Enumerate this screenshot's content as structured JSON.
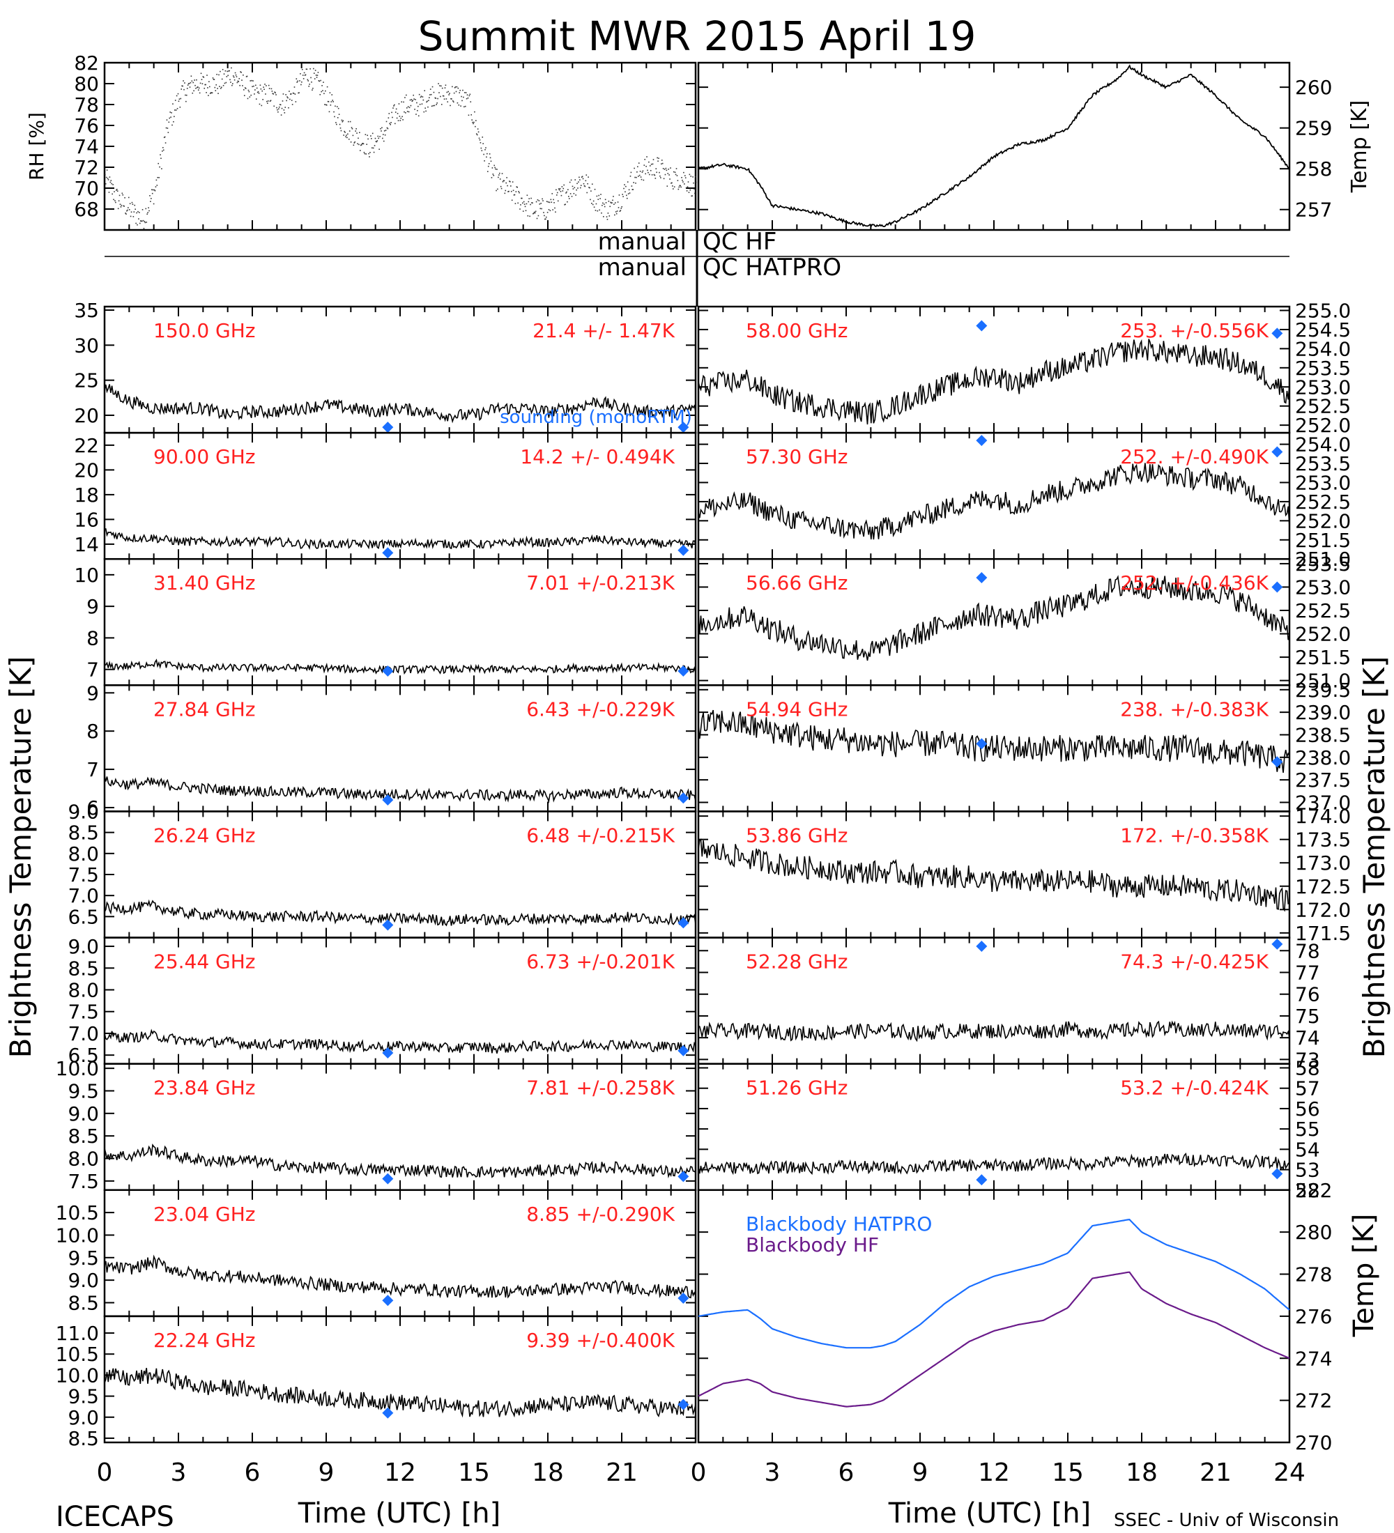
{
  "header": {
    "title": "Summit MWR 2015 April 19",
    "footer_left": "ICECAPS",
    "footer_right": "SSEC - Univ of Wisconsin"
  },
  "colors": {
    "trace": "#000000",
    "label": "#ff2020",
    "marker": "#1a6fff",
    "hatpro": "#1a6fff",
    "hf": "#6a1a8a",
    "sonde_label": "#1a6fff"
  },
  "qc": {
    "manual_left": "manual",
    "qc_hf": "QC HF",
    "qc_hatpro": "QC HATPRO"
  },
  "axes_labels": {
    "rh_ylabel": "RH [%]",
    "temp_ylabel": "Temp [K]",
    "tb_left": "Brightness Temperature [K]",
    "tb_right": "Brightness Temperature [K]",
    "bb_ylabel": "Temp [K]",
    "xlabel_left": "Time (UTC) [h]",
    "xlabel_right": "Time (UTC) [h]",
    "x_ticks": [
      "0",
      "3",
      "6",
      "9",
      "12",
      "15",
      "18",
      "21",
      "24"
    ],
    "sonde_legend": "sounding (monoRTM)"
  },
  "chart_data": [
    {
      "id": "rh",
      "type": "scatter",
      "ylabel": "RH [%]",
      "ylim": [
        66,
        82
      ],
      "yticks": [
        "68",
        "70",
        "72",
        "74",
        "76",
        "78",
        "80",
        "82"
      ],
      "series": [
        {
          "x": [
            0,
            0.5,
            1,
            1.5,
            2,
            2.5,
            3,
            3.5,
            4,
            4.5,
            5,
            5.5,
            6,
            6.5,
            7,
            7.5,
            8,
            8.5,
            9,
            9.5,
            10,
            10.5,
            11,
            11.5,
            12,
            12.5,
            13,
            13.5,
            14,
            14.5,
            15,
            15.5,
            16,
            16.5,
            17,
            17.5,
            18,
            18.5,
            19,
            19.5,
            20,
            20.5,
            21,
            21.5,
            22,
            22.5,
            23,
            23.5
          ],
          "y": [
            71,
            69,
            68,
            67,
            70,
            76,
            79,
            80,
            80,
            80,
            81,
            80,
            79,
            79,
            78,
            79,
            81,
            80,
            78,
            76,
            75,
            74,
            75,
            77,
            78,
            78,
            79,
            79,
            79,
            78,
            74,
            71,
            70,
            69,
            68,
            68,
            69,
            70,
            71,
            69,
            68,
            69,
            71,
            72,
            72,
            71,
            71,
            70
          ]
        }
      ]
    },
    {
      "id": "temp",
      "type": "line",
      "ylabel": "Temp [K]",
      "ylim": [
        256.5,
        260.6
      ],
      "yticks": [
        "257",
        "258",
        "259",
        "260"
      ],
      "series": [
        {
          "x": [
            0,
            1,
            2,
            2.5,
            3,
            4,
            5,
            6,
            7,
            7.5,
            8,
            9,
            10,
            11,
            12,
            13,
            14,
            15,
            15.5,
            16,
            17,
            17.5,
            18,
            19,
            20,
            21,
            22,
            23,
            24
          ],
          "y": [
            258,
            258.1,
            258,
            257.6,
            257.1,
            257,
            256.9,
            256.7,
            256.6,
            256.6,
            256.7,
            257,
            257.4,
            257.8,
            258.3,
            258.6,
            258.7,
            259,
            259.4,
            259.8,
            260.2,
            260.5,
            260.3,
            260,
            260.3,
            259.8,
            259.2,
            258.8,
            258
          ]
        }
      ]
    }
  ],
  "tb_left": [
    {
      "freq": "150.0 GHz",
      "stat": "21.4 +/-  1.47K",
      "ylim": [
        17.5,
        35.5
      ],
      "yticks": [
        "20",
        "25",
        "30",
        "35"
      ],
      "base": [
        24,
        22,
        21,
        21,
        21,
        20,
        20.5,
        20.5,
        21,
        21.5,
        21,
        20.5,
        21,
        20.5,
        20,
        20,
        21,
        21,
        20.5,
        21,
        22,
        21,
        20.5,
        20.5,
        21
      ],
      "noise": 0.9,
      "sondes": [
        [
          11.5,
          17.5
        ],
        [
          23.5,
          18
        ]
      ]
    },
    {
      "freq": "90.00 GHz",
      "stat": "14.2 +/- 0.494K",
      "ylim": [
        12.8,
        23
      ],
      "yticks": [
        "14",
        "16",
        "18",
        "20",
        "22"
      ],
      "base": [
        15,
        14.5,
        14.5,
        14.2,
        14.2,
        14.2,
        14.2,
        14.2,
        14,
        14,
        14,
        14,
        14,
        14.1,
        14,
        14,
        14,
        14.2,
        14.1,
        14.2,
        14.4,
        14.2,
        14.1,
        14,
        14
      ],
      "noise": 0.35,
      "sondes": [
        [
          11.5,
          13.3
        ],
        [
          23.5,
          13.5
        ]
      ]
    },
    {
      "freq": "31.40 GHz",
      "stat": "7.01 +/-0.213K",
      "ylim": [
        6.5,
        10.5
      ],
      "yticks": [
        "7",
        "8",
        "9",
        "10"
      ],
      "base": [
        7.1,
        7.1,
        7.2,
        7.1,
        7.05,
        7.05,
        7.05,
        7.05,
        7.05,
        7.05,
        7,
        7,
        7,
        7,
        7,
        7,
        7,
        7,
        7,
        7.05,
        7.05,
        7.05,
        7.05,
        7.05,
        7
      ],
      "noise": 0.12,
      "sondes": [
        [
          11.5,
          6.95
        ],
        [
          23.5,
          6.95
        ]
      ]
    },
    {
      "freq": "27.84 GHz",
      "stat": "6.43 +/-0.229K",
      "ylim": [
        5.9,
        9.2
      ],
      "yticks": [
        "6",
        "7",
        "8",
        "9"
      ],
      "base": [
        6.7,
        6.6,
        6.65,
        6.55,
        6.5,
        6.45,
        6.45,
        6.4,
        6.4,
        6.4,
        6.35,
        6.35,
        6.35,
        6.35,
        6.3,
        6.35,
        6.3,
        6.35,
        6.3,
        6.35,
        6.35,
        6.4,
        6.35,
        6.35,
        6.3
      ],
      "noise": 0.14,
      "sondes": [
        [
          11.5,
          6.2
        ],
        [
          23.5,
          6.25
        ]
      ]
    },
    {
      "freq": "26.24 GHz",
      "stat": "6.48 +/-0.215K",
      "ylim": [
        6.0,
        9.0
      ],
      "yticks": [
        "6.5",
        "7.0",
        "7.5",
        "8.0",
        "8.5",
        "9.0"
      ],
      "base": [
        6.7,
        6.7,
        6.75,
        6.6,
        6.55,
        6.55,
        6.5,
        6.5,
        6.5,
        6.5,
        6.45,
        6.45,
        6.45,
        6.45,
        6.4,
        6.45,
        6.4,
        6.45,
        6.45,
        6.45,
        6.45,
        6.5,
        6.45,
        6.45,
        6.4
      ],
      "noise": 0.13,
      "sondes": [
        [
          11.5,
          6.3
        ],
        [
          23.5,
          6.35
        ]
      ]
    },
    {
      "freq": "25.44 GHz",
      "stat": "6.73 +/-0.201K",
      "ylim": [
        6.3,
        9.2
      ],
      "yticks": [
        "6.5",
        "7.0",
        "7.5",
        "8.0",
        "8.5",
        "9.0"
      ],
      "base": [
        6.95,
        6.9,
        6.95,
        6.85,
        6.8,
        6.8,
        6.75,
        6.75,
        6.75,
        6.75,
        6.7,
        6.7,
        6.7,
        6.7,
        6.65,
        6.7,
        6.65,
        6.7,
        6.7,
        6.7,
        6.75,
        6.75,
        6.7,
        6.7,
        6.7
      ],
      "noise": 0.12,
      "sondes": [
        [
          11.5,
          6.55
        ],
        [
          23.5,
          6.6
        ]
      ]
    },
    {
      "freq": "23.84 GHz",
      "stat": "7.81 +/-0.258K",
      "ylim": [
        7.3,
        10.1
      ],
      "yticks": [
        "7.5",
        "8.0",
        "8.5",
        "9.0",
        "9.5",
        "10.0"
      ],
      "base": [
        8.1,
        8.05,
        8.2,
        8.05,
        7.95,
        7.95,
        7.95,
        7.85,
        7.8,
        7.8,
        7.75,
        7.75,
        7.75,
        7.75,
        7.7,
        7.7,
        7.7,
        7.7,
        7.75,
        7.75,
        7.8,
        7.8,
        7.75,
        7.7,
        7.7
      ],
      "noise": 0.13,
      "sondes": [
        [
          11.5,
          7.55
        ],
        [
          23.5,
          7.6
        ]
      ]
    },
    {
      "freq": "23.04 GHz",
      "stat": "8.85 +/-0.290K",
      "ylim": [
        8.2,
        11.0
      ],
      "yticks": [
        "8.5",
        "9.0",
        "9.5",
        "10.0",
        "10.5"
      ],
      "base": [
        9.3,
        9.25,
        9.4,
        9.2,
        9.1,
        9.1,
        9.05,
        9.0,
        8.95,
        8.9,
        8.85,
        8.85,
        8.8,
        8.8,
        8.75,
        8.75,
        8.75,
        8.75,
        8.8,
        8.8,
        8.85,
        8.85,
        8.8,
        8.75,
        8.75
      ],
      "noise": 0.14,
      "sondes": [
        [
          11.5,
          8.55
        ],
        [
          23.5,
          8.6
        ]
      ]
    },
    {
      "freq": "22.24 GHz",
      "stat": "9.39 +/-0.400K",
      "ylim": [
        8.4,
        11.4
      ],
      "yticks": [
        "8.5",
        "9.0",
        "9.5",
        "10.0",
        "10.5",
        "11.0"
      ],
      "base": [
        10,
        9.9,
        10,
        9.85,
        9.7,
        9.7,
        9.65,
        9.55,
        9.5,
        9.45,
        9.4,
        9.4,
        9.35,
        9.3,
        9.25,
        9.2,
        9.2,
        9.25,
        9.3,
        9.3,
        9.35,
        9.3,
        9.25,
        9.2,
        9.2
      ],
      "noise": 0.2,
      "sondes": [
        [
          11.5,
          9.1
        ],
        [
          23.5,
          9.3
        ]
      ]
    }
  ],
  "tb_right": [
    {
      "freq": "58.00 GHz",
      "stat": "253. +/-0.556K",
      "ylim": [
        251.8,
        255.1
      ],
      "yticks": [
        "252.0",
        "252.5",
        "253.0",
        "253.5",
        "254.0",
        "254.5",
        "255.0"
      ],
      "base": [
        253,
        253.1,
        253.2,
        252.8,
        252.6,
        252.5,
        252.4,
        252.3,
        252.5,
        252.8,
        253,
        253.2,
        253.3,
        253.1,
        253.4,
        253.5,
        253.7,
        253.9,
        254,
        253.9,
        253.8,
        253.8,
        253.6,
        253.3,
        252.8
      ],
      "noise": 0.3,
      "sondes": [
        [
          11.5,
          254.6
        ],
        [
          23.5,
          254.4
        ]
      ]
    },
    {
      "freq": "57.30 GHz",
      "stat": "252. +/-0.490K",
      "ylim": [
        251.0,
        254.3
      ],
      "yticks": [
        "251.0",
        "251.5",
        "252.0",
        "252.5",
        "253.0",
        "253.5",
        "254.0"
      ],
      "base": [
        252.3,
        252.4,
        252.5,
        252.2,
        252,
        251.9,
        251.8,
        251.7,
        251.9,
        252.1,
        252.3,
        252.5,
        252.6,
        252.4,
        252.7,
        252.8,
        253,
        253.2,
        253.3,
        253.2,
        253.1,
        253.1,
        252.9,
        252.6,
        252.1
      ],
      "noise": 0.28,
      "sondes": [
        [
          11.5,
          254.1
        ],
        [
          23.5,
          253.8
        ]
      ]
    },
    {
      "freq": "56.66 GHz",
      "stat": "252. +/-0.436K",
      "ylim": [
        250.9,
        253.6
      ],
      "yticks": [
        "251.0",
        "251.5",
        "252.0",
        "252.5",
        "253.0",
        "253.5"
      ],
      "base": [
        252.2,
        252.3,
        252.4,
        252.1,
        251.9,
        251.8,
        251.7,
        251.6,
        251.8,
        252,
        252.2,
        252.4,
        252.4,
        252.3,
        252.5,
        252.6,
        252.8,
        253,
        253,
        253,
        252.9,
        252.9,
        252.7,
        252.4,
        252
      ],
      "noise": 0.25,
      "sondes": [
        [
          11.5,
          253.2
        ],
        [
          23.5,
          253.0
        ]
      ]
    },
    {
      "freq": "54.94 GHz",
      "stat": "238. +/-0.383K",
      "ylim": [
        236.8,
        239.6
      ],
      "yticks": [
        "237.0",
        "237.5",
        "238.0",
        "238.5",
        "239.0",
        "239.5"
      ],
      "base": [
        238.7,
        238.8,
        238.7,
        238.6,
        238.5,
        238.4,
        238.4,
        238.3,
        238.3,
        238.3,
        238.3,
        238.2,
        238.2,
        238.2,
        238.2,
        238.2,
        238.2,
        238.2,
        238.2,
        238.2,
        238.2,
        238.1,
        238.1,
        238.0,
        237.9
      ],
      "noise": 0.3,
      "sondes": [
        [
          11.5,
          238.3
        ],
        [
          23.5,
          237.9
        ]
      ]
    },
    {
      "freq": "53.86 GHz",
      "stat": "172. +/-0.358K",
      "ylim": [
        171.4,
        174.1
      ],
      "yticks": [
        "171.5",
        "172.0",
        "172.5",
        "173.0",
        "173.5",
        "174.0"
      ],
      "base": [
        173.3,
        173.2,
        173.1,
        173,
        172.9,
        172.9,
        172.8,
        172.8,
        172.8,
        172.7,
        172.7,
        172.7,
        172.6,
        172.6,
        172.6,
        172.6,
        172.6,
        172.5,
        172.5,
        172.5,
        172.5,
        172.4,
        172.4,
        172.3,
        172.2
      ],
      "noise": 0.25,
      "sondes": []
    },
    {
      "freq": "52.28 GHz",
      "stat": "74.3 +/-0.425K",
      "ylim": [
        72.8,
        78.6
      ],
      "yticks": [
        "73",
        "74",
        "75",
        "76",
        "77",
        "78"
      ],
      "base": [
        74.3,
        74.3,
        74.3,
        74.3,
        74.2,
        74.2,
        74.3,
        74.3,
        74.3,
        74.2,
        74.3,
        74.3,
        74.3,
        74.3,
        74.3,
        74.4,
        74.3,
        74.3,
        74.4,
        74.4,
        74.3,
        74.4,
        74.3,
        74.3,
        74.3
      ],
      "noise": 0.35,
      "sondes": [
        [
          11.5,
          78.2
        ],
        [
          23.5,
          78.3
        ]
      ]
    },
    {
      "freq": "51.26 GHz",
      "stat": "53.2 +/-0.424K",
      "ylim": [
        52.0,
        58.2
      ],
      "yticks": [
        "52",
        "53",
        "54",
        "55",
        "56",
        "57",
        "58"
      ],
      "base": [
        53.1,
        53.1,
        53.1,
        53.1,
        53.1,
        53.1,
        53.2,
        53.1,
        53.1,
        53.1,
        53.2,
        53.2,
        53.2,
        53.2,
        53.3,
        53.3,
        53.3,
        53.4,
        53.4,
        53.5,
        53.5,
        53.5,
        53.4,
        53.4,
        53.3
      ],
      "noise": 0.3,
      "sondes": [
        [
          11.5,
          52.5
        ],
        [
          23.5,
          52.8
        ]
      ]
    }
  ],
  "blackbody": {
    "type": "line",
    "ylim": [
      270,
      282
    ],
    "yticks": [
      "270",
      "272",
      "274",
      "276",
      "278",
      "280",
      "282"
    ],
    "legend": [
      "Blackbody HATPRO",
      "Blackbody HF"
    ],
    "series": [
      {
        "name": "Blackbody HATPRO",
        "x": [
          0,
          1,
          2,
          2.5,
          3,
          4,
          5,
          6,
          7,
          7.5,
          8,
          9,
          10,
          11,
          12,
          13,
          14,
          15,
          16,
          17,
          17.5,
          18,
          19,
          20,
          21,
          22,
          23,
          24
        ],
        "y": [
          276,
          276.2,
          276.3,
          275.9,
          275.4,
          275,
          274.7,
          274.5,
          274.5,
          274.6,
          274.8,
          275.6,
          276.6,
          277.4,
          277.9,
          278.2,
          278.5,
          279,
          280.3,
          280.5,
          280.6,
          280,
          279.4,
          279,
          278.6,
          278,
          277.3,
          276.3
        ]
      },
      {
        "name": "Blackbody HF",
        "x": [
          0,
          1,
          2,
          2.5,
          3,
          4,
          5,
          6,
          7,
          7.5,
          8,
          9,
          10,
          11,
          12,
          13,
          14,
          15,
          16,
          17,
          17.5,
          18,
          19,
          20,
          21,
          22,
          23,
          24
        ],
        "y": [
          272.2,
          272.8,
          273,
          272.8,
          272.4,
          272.1,
          271.9,
          271.7,
          271.8,
          272,
          272.4,
          273.2,
          274,
          274.8,
          275.3,
          275.6,
          275.8,
          276.4,
          277.8,
          278,
          278.1,
          277.3,
          276.6,
          276.1,
          275.7,
          275.1,
          274.5,
          274
        ]
      }
    ]
  }
}
